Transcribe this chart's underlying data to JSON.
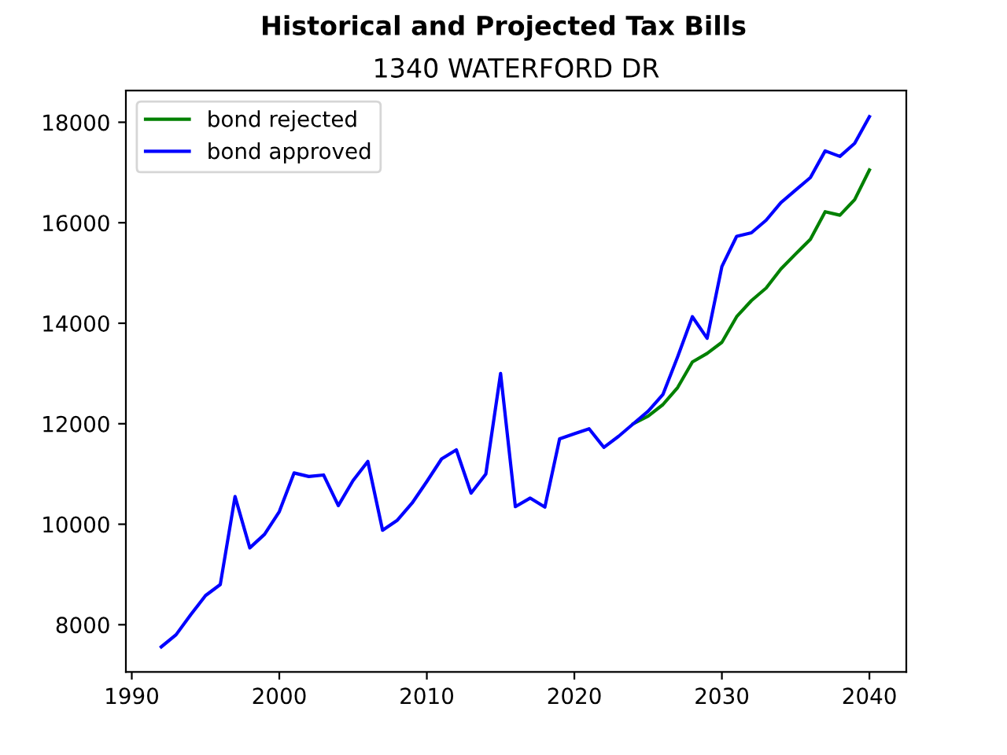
{
  "chart_data": {
    "type": "line",
    "title": "Historical and Projected Tax Bills",
    "subtitle": "1340 WATERFORD DR",
    "x": [
      1992,
      1993,
      1994,
      1995,
      1996,
      1997,
      1998,
      1999,
      2000,
      2001,
      2002,
      2003,
      2004,
      2005,
      2006,
      2007,
      2008,
      2009,
      2010,
      2011,
      2012,
      2013,
      2014,
      2015,
      2016,
      2017,
      2018,
      2019,
      2020,
      2021,
      2022,
      2023,
      2024,
      2025,
      2026,
      2027,
      2028,
      2029,
      2030,
      2031,
      2032,
      2033,
      2034,
      2035,
      2036,
      2037,
      2038,
      2039,
      2040
    ],
    "series": [
      {
        "name": "bond rejected",
        "color": "#008000",
        "values": [
          null,
          null,
          null,
          null,
          null,
          null,
          null,
          null,
          null,
          null,
          null,
          null,
          null,
          null,
          null,
          null,
          null,
          null,
          null,
          null,
          null,
          null,
          null,
          null,
          null,
          null,
          null,
          null,
          null,
          null,
          null,
          null,
          12000,
          12150,
          12380,
          12720,
          13230,
          13400,
          13620,
          14130,
          14450,
          14700,
          15080,
          15380,
          15670,
          16220,
          16150,
          16460,
          17050
        ]
      },
      {
        "name": "bond approved",
        "color": "#0000ff",
        "values": [
          7560,
          7800,
          8200,
          8580,
          8800,
          10550,
          9530,
          9800,
          10250,
          11020,
          10950,
          10980,
          10370,
          10870,
          11250,
          9880,
          10080,
          10420,
          10850,
          11300,
          11480,
          10620,
          11000,
          13000,
          10350,
          10520,
          10340,
          11700,
          11800,
          11900,
          11530,
          11750,
          12000,
          12250,
          12580,
          13330,
          14130,
          13700,
          15130,
          15730,
          15800,
          16050,
          16400,
          16650,
          16900,
          17430,
          17320,
          17580,
          18110
        ]
      }
    ],
    "xlim": [
      1989.6,
      2042.5
    ],
    "ylim": [
      7060,
      18630
    ],
    "xticks": [
      1990,
      2000,
      2010,
      2020,
      2030,
      2040
    ],
    "yticks": [
      8000,
      10000,
      12000,
      14000,
      16000,
      18000
    ],
    "legend": "top left",
    "grid": false,
    "marker": "none",
    "line_style": "solid"
  }
}
